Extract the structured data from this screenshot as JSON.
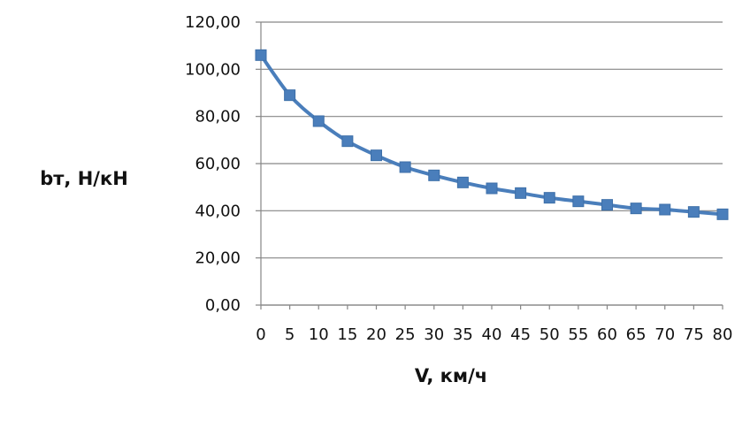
{
  "chart_data": {
    "type": "line",
    "title": "",
    "xlabel": "V, км/ч",
    "ylabel": "bт, Н/кН",
    "x": [
      0,
      5,
      10,
      15,
      20,
      25,
      30,
      35,
      40,
      45,
      50,
      55,
      60,
      65,
      70,
      75,
      80
    ],
    "series": [
      {
        "values": [
          106,
          89,
          78,
          69.5,
          63.5,
          58.5,
          55,
          52,
          49.5,
          47.5,
          45.5,
          44,
          42.5,
          41,
          40.5,
          39.5,
          38.5
        ]
      }
    ],
    "ylim": [
      0,
      120
    ],
    "xlim": [
      0,
      80
    ],
    "y_ticks": [
      "0,00",
      "20,00",
      "40,00",
      "60,00",
      "80,00",
      "100,00",
      "120,00"
    ],
    "x_ticks": [
      "0",
      "5",
      "10",
      "15",
      "20",
      "25",
      "30",
      "35",
      "40",
      "45",
      "50",
      "55",
      "60",
      "65",
      "70",
      "75",
      "80"
    ],
    "grid": "horizontal",
    "legend": "none",
    "series_color": "#4a7ebb",
    "marker_color": "#4a7ebb",
    "grid_color": "#868686"
  }
}
